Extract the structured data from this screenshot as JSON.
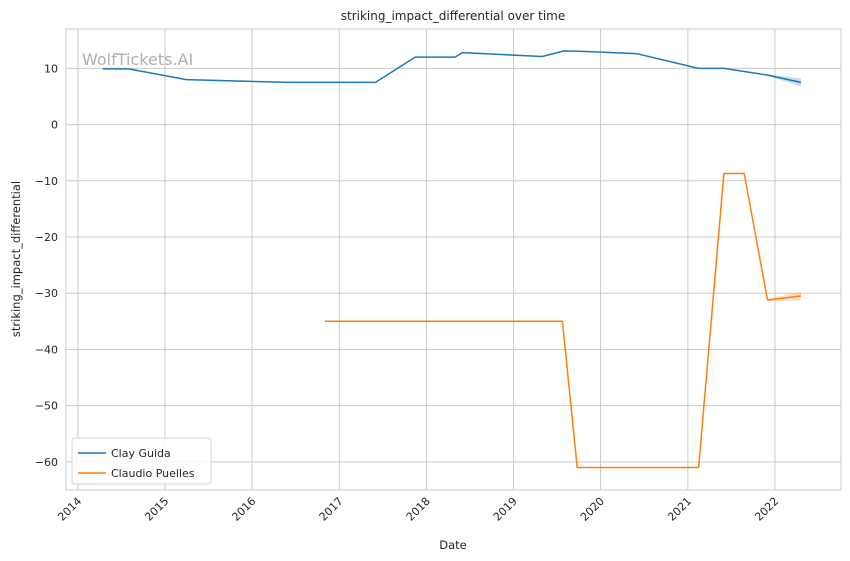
{
  "chart_data": {
    "type": "line",
    "title": "striking_impact_differential over time",
    "xlabel": "Date",
    "ylabel": "striking_impact_differential",
    "watermark": "WolfTickets.AI",
    "x_ticks": [
      "2014",
      "2015",
      "2016",
      "2017",
      "2018",
      "2019",
      "2020",
      "2021",
      "2022"
    ],
    "y_ticks": [
      10,
      0,
      -10,
      -20,
      -30,
      -40,
      -50,
      -60
    ],
    "xlim": [
      "2013-11-12",
      "2022-10-05"
    ],
    "ylim": [
      -65,
      17
    ],
    "grid": true,
    "legend_position": "lower-left",
    "series": [
      {
        "name": "Clay Guida",
        "color": "#1f77b4",
        "points": [
          [
            "2014-04-15",
            9.9
          ],
          [
            "2014-08-01",
            9.9
          ],
          [
            "2015-04-01",
            8.0
          ],
          [
            "2016-06-01",
            7.5
          ],
          [
            "2017-06-01",
            7.5
          ],
          [
            "2017-11-15",
            12.0
          ],
          [
            "2018-05-01",
            12.0
          ],
          [
            "2018-06-01",
            12.8
          ],
          [
            "2019-05-01",
            12.1
          ],
          [
            "2019-08-01",
            13.1
          ],
          [
            "2019-11-01",
            13.0
          ],
          [
            "2020-06-01",
            12.6
          ],
          [
            "2021-02-15",
            10.0
          ],
          [
            "2021-06-01",
            10.0
          ],
          [
            "2021-12-01",
            8.8
          ],
          [
            "2022-04-20",
            7.5
          ]
        ],
        "band_start": "2021-12-01",
        "band_halfwidth": 0.7
      },
      {
        "name": "Claudio Puelles",
        "color": "#ff7f0e",
        "points": [
          [
            "2016-11-01",
            -35.0
          ],
          [
            "2019-07-25",
            -35.0
          ],
          [
            "2019-09-25",
            -61.0
          ],
          [
            "2021-02-15",
            -61.0
          ],
          [
            "2021-06-01",
            -8.7
          ],
          [
            "2021-08-25",
            -8.7
          ],
          [
            "2021-12-01",
            -31.2
          ],
          [
            "2022-04-20",
            -30.5
          ]
        ],
        "band_start": "2021-12-01",
        "band_halfwidth": 0.8
      }
    ]
  }
}
